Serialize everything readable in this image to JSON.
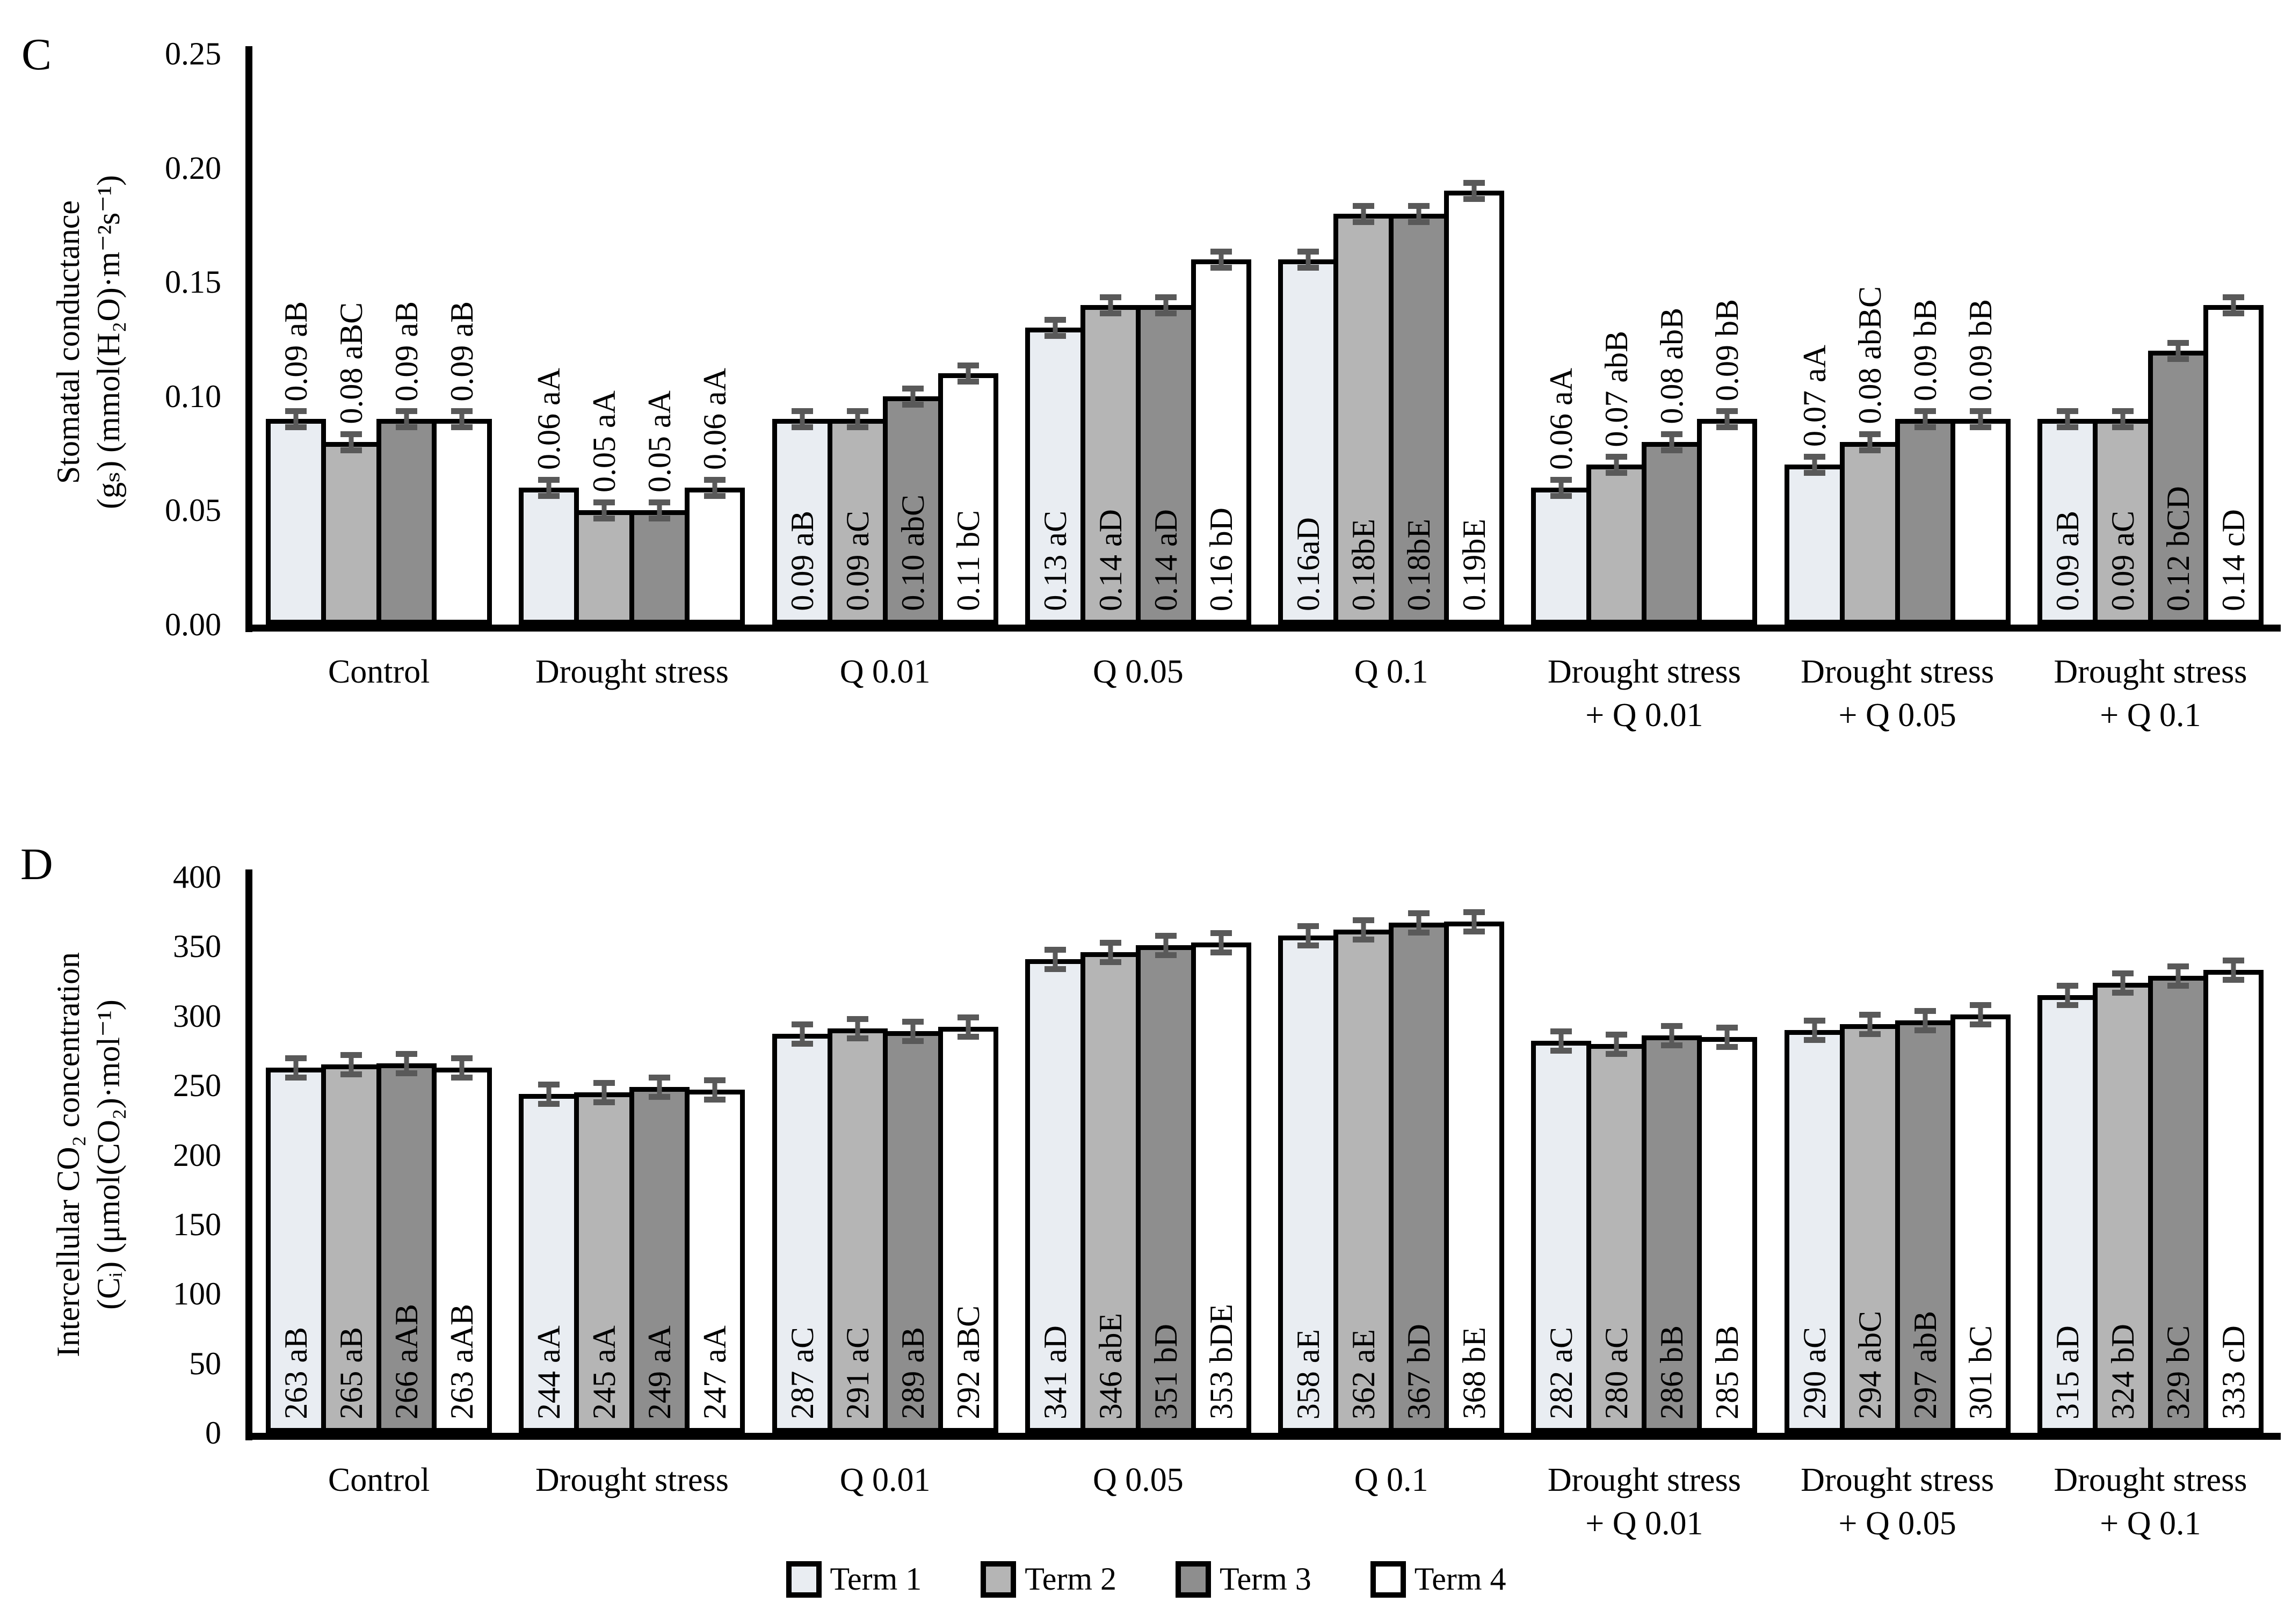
{
  "colors": {
    "series": [
      "#E9EDF2",
      "#B5B5B5",
      "#8E8E8E",
      "#FFFFFF"
    ],
    "axis": "#000000",
    "bar_border": "#000000",
    "error_bar": "#595959",
    "background": "#FFFFFF"
  },
  "legend": {
    "items": [
      {
        "label": "Term 1",
        "color": "#E9EDF2"
      },
      {
        "label": "Term 2",
        "color": "#B5B5B5"
      },
      {
        "label": "Term 3",
        "color": "#8E8E8E"
      },
      {
        "label": "Term 4",
        "color": "#FFFFFF"
      }
    ]
  },
  "chart_data": [
    {
      "type": "bar",
      "panel_label": "C",
      "title": "",
      "ylabel_line1": "Stomatal conductance",
      "ylabel_line2": "(gₛ) (mmol(H₂O)·m⁻²s⁻¹)",
      "ylim": [
        0,
        0.25
      ],
      "yticks": [
        "0.00",
        "0.05",
        "0.10",
        "0.15",
        "0.20",
        "0.25"
      ],
      "ytick_values": [
        0,
        0.05,
        0.1,
        0.15,
        0.2,
        0.25
      ],
      "grid": false,
      "legend_position": "bottom",
      "categories": [
        [
          "Control"
        ],
        [
          "Drought stress"
        ],
        [
          "Q 0.01"
        ],
        [
          "Q 0.05"
        ],
        [
          "Q 0.1"
        ],
        [
          "Drought stress",
          "+ Q 0.01"
        ],
        [
          "Drought stress",
          "+ Q 0.05"
        ],
        [
          "Drought stress",
          "+ Q 0.1"
        ]
      ],
      "series": [
        {
          "name": "Term 1",
          "values": [
            0.09,
            0.06,
            0.09,
            0.13,
            0.16,
            0.06,
            0.07,
            0.09
          ]
        },
        {
          "name": "Term 2",
          "values": [
            0.08,
            0.05,
            0.09,
            0.14,
            0.18,
            0.07,
            0.08,
            0.09
          ]
        },
        {
          "name": "Term 3",
          "values": [
            0.09,
            0.05,
            0.1,
            0.14,
            0.18,
            0.08,
            0.09,
            0.12
          ]
        },
        {
          "name": "Term 4",
          "values": [
            0.09,
            0.06,
            0.11,
            0.16,
            0.19,
            0.09,
            0.09,
            0.14
          ]
        }
      ],
      "bar_labels": [
        [
          "0.09 aB",
          "0.08 aBC",
          "0.09 aB",
          "0.09 aB"
        ],
        [
          "0.06 aA",
          "0.05 aA",
          "0.05 aA",
          "0.06 aA"
        ],
        [
          "0.09 aB",
          "0.09 aC",
          "0.10 abC",
          "0.11 bC"
        ],
        [
          "0.13 aC",
          "0.14 aD",
          "0.14 aD",
          "0.16 bD"
        ],
        [
          "0.16aD",
          "0.18bE",
          "0.18bE",
          "0.19bE"
        ],
        [
          "0.06 aA",
          "0.07 abB",
          "0.08 abB",
          "0.09 bB"
        ],
        [
          "0.07 aA",
          "0.08 abBC",
          "0.09 bB",
          "0.09 bB"
        ],
        [
          "0.09 aB",
          "0.09 aC",
          "0.12 bCD",
          "0.14 cD"
        ]
      ],
      "label_positions": [
        "above",
        "above",
        "inside",
        "inside",
        "inside",
        "above",
        "above",
        "inside"
      ],
      "error_bar_approx": 0.0035
    },
    {
      "type": "bar",
      "panel_label": "D",
      "title": "",
      "ylabel_line1": "Intercellular CO₂ concentration",
      "ylabel_line2": "(Cᵢ) (μmol(CO₂)·mol⁻¹)",
      "ylim": [
        0,
        400
      ],
      "yticks": [
        "0",
        "50",
        "100",
        "150",
        "200",
        "250",
        "300",
        "350",
        "400"
      ],
      "ytick_values": [
        0,
        50,
        100,
        150,
        200,
        250,
        300,
        350,
        400
      ],
      "grid": false,
      "legend_position": "bottom",
      "categories": [
        [
          "Control"
        ],
        [
          "Drought stress"
        ],
        [
          "Q 0.01"
        ],
        [
          "Q 0.05"
        ],
        [
          "Q 0.1"
        ],
        [
          "Drought stress",
          "+ Q 0.01"
        ],
        [
          "Drought stress",
          "+ Q 0.05"
        ],
        [
          "Drought stress",
          "+ Q 0.1"
        ]
      ],
      "series": [
        {
          "name": "Term 1",
          "values": [
            263,
            244,
            287,
            341,
            358,
            282,
            290,
            315
          ]
        },
        {
          "name": "Term 2",
          "values": [
            265,
            245,
            291,
            346,
            362,
            280,
            294,
            324
          ]
        },
        {
          "name": "Term 3",
          "values": [
            266,
            249,
            289,
            351,
            367,
            286,
            297,
            329
          ]
        },
        {
          "name": "Term 4",
          "values": [
            263,
            247,
            292,
            353,
            368,
            285,
            301,
            333
          ]
        }
      ],
      "bar_labels": [
        [
          "263 aB",
          "265 aB",
          "266 aAB",
          "263 aAB"
        ],
        [
          "244 aA",
          "245 aA",
          "249 aA",
          "247 aA"
        ],
        [
          "287 aC",
          "291 aC",
          "289 aB",
          "292 aBC"
        ],
        [
          "341 aD",
          "346 abE",
          "351 bD",
          "353 bDE"
        ],
        [
          "358 aE",
          "362 aE",
          "367 bD",
          "368 bE"
        ],
        [
          "282 aC",
          "280 aC",
          "286 bB",
          "285 bB"
        ],
        [
          "290 aC",
          "294 abC",
          "297 abB",
          "301 bC"
        ],
        [
          "315 aD",
          "324 bD",
          "329 bC",
          "333 cD"
        ]
      ],
      "label_positions": [
        "inside",
        "inside",
        "inside",
        "inside",
        "inside",
        "inside",
        "inside",
        "inside"
      ],
      "error_bar_approx": 7
    }
  ]
}
